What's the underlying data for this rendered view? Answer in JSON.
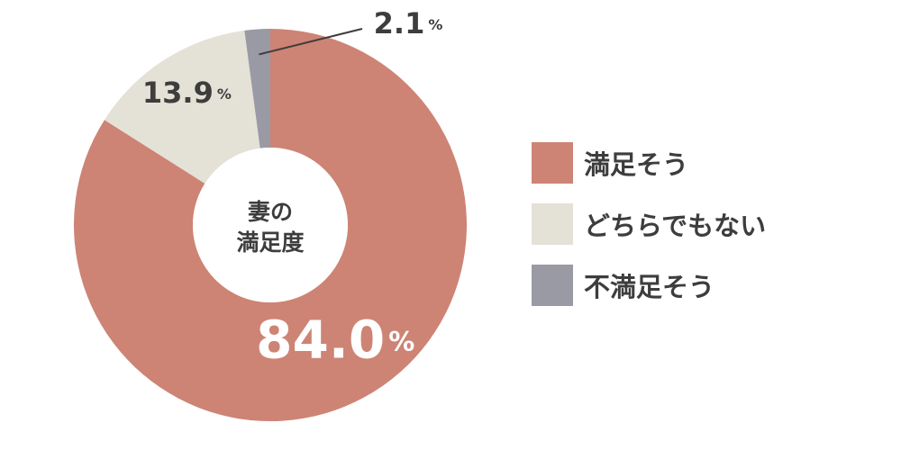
{
  "chart_data": {
    "type": "pie",
    "center_label": [
      "妻の",
      "満足度"
    ],
    "categories": [
      "満足そう",
      "どちらでもない",
      "不満足そう"
    ],
    "values": [
      84.0,
      13.9,
      2.1
    ],
    "value_labels": [
      "84.0",
      "13.9",
      "2.1"
    ],
    "unit": "%",
    "colors": [
      "#cd8475",
      "#e4e1d6",
      "#9a9aa5"
    ],
    "label_colors": [
      "#ffffff",
      "#3d3d3d",
      "#3d3d3d"
    ],
    "legend_position": "right"
  }
}
